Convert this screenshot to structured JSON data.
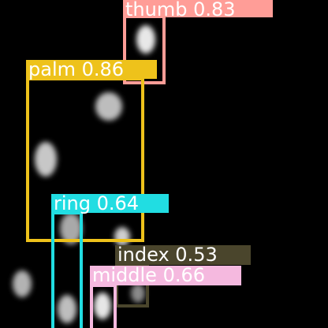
{
  "image": {
    "background": "#000000"
  },
  "detections": [
    {
      "label": "thumb 0.83",
      "class": "thumb",
      "confidence": 0.83,
      "color": "#ff9d97",
      "text_color": "#ffffff"
    },
    {
      "label": "palm 0.86",
      "class": "palm",
      "confidence": 0.86,
      "color": "#eec21b",
      "text_color": "#ffffff"
    },
    {
      "label": "ring 0.64",
      "class": "ring",
      "confidence": 0.64,
      "color": "#21dde2",
      "text_color": "#ffffff"
    },
    {
      "label": "index 0.53",
      "class": "index",
      "confidence": 0.53,
      "color": "#4a452c",
      "text_color": "#ffffff"
    },
    {
      "label": "middle 0.66",
      "class": "middle",
      "confidence": 0.66,
      "color": "#f5b9df",
      "text_color": "#ffffff"
    }
  ]
}
